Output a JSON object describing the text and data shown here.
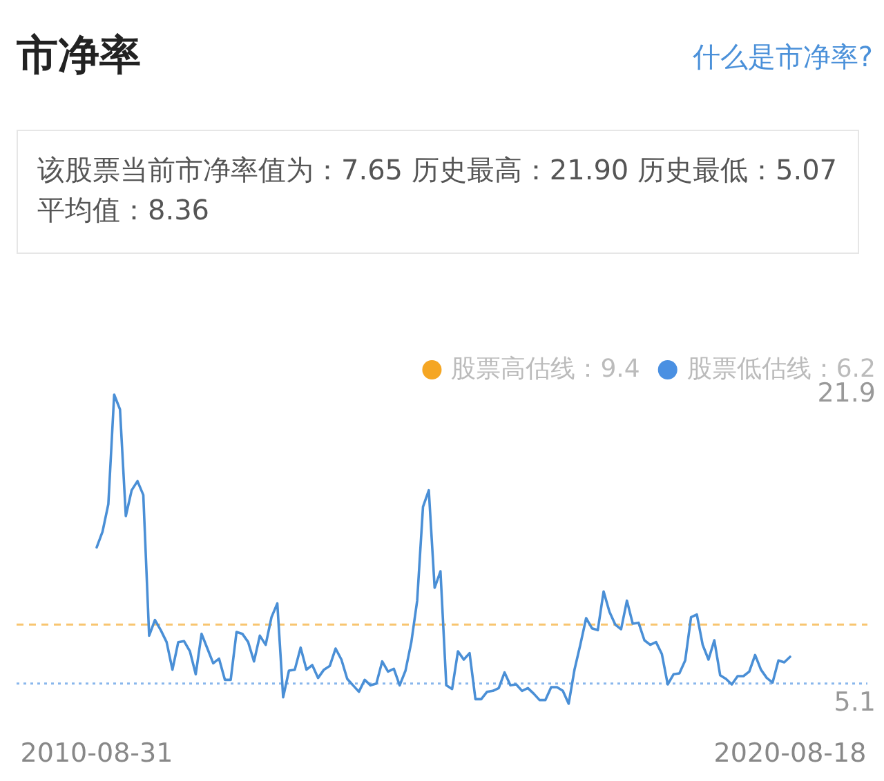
{
  "chart_data": {
    "type": "line",
    "title": "市净率",
    "subtitle": "该股票当前市净率值为：7.65 历史最高：21.90 历史最低：5.07 平均值：8.36",
    "annotations": [
      "什么是市净率?"
    ],
    "categories": [
      "2010-08-31",
      null,
      null,
      null,
      null,
      null,
      null,
      null,
      null,
      null,
      null,
      null,
      null,
      null,
      null,
      null,
      null,
      null,
      null,
      null,
      null,
      null,
      null,
      null,
      null,
      null,
      null,
      null,
      null,
      null,
      null,
      null,
      null,
      null,
      null,
      null,
      null,
      null,
      null,
      null,
      null,
      null,
      null,
      null,
      null,
      null,
      null,
      null,
      null,
      null,
      null,
      null,
      null,
      null,
      null,
      null,
      null,
      null,
      null,
      null,
      null,
      null,
      null,
      null,
      null,
      null,
      null,
      null,
      null,
      null,
      null,
      null,
      null,
      null,
      null,
      null,
      null,
      null,
      null,
      null,
      null,
      null,
      null,
      null,
      null,
      null,
      null,
      null,
      null,
      null,
      null,
      null,
      null,
      null,
      null,
      null,
      null,
      null,
      null,
      null,
      null,
      null,
      null,
      null,
      null,
      null,
      null,
      null,
      null,
      null,
      null,
      null,
      null,
      null,
      null,
      null,
      null,
      null,
      null,
      "2020-08-18"
    ],
    "series": [
      {
        "color": "#4a8fd6",
        "values": [
          13.6,
          14.45,
          15.95,
          21.9,
          21.1,
          15.3,
          16.7,
          17.2,
          16.45,
          8.8,
          9.65,
          9.1,
          8.45,
          6.95,
          8.45,
          8.5,
          7.95,
          6.7,
          8.9,
          8.1,
          7.3,
          7.55,
          6.4,
          6.4,
          9.0,
          8.9,
          8.45,
          7.4,
          8.8,
          8.3,
          9.8,
          10.55,
          5.45,
          6.9,
          6.95,
          8.15,
          6.95,
          7.2,
          6.5,
          6.95,
          7.15,
          8.1,
          7.5,
          6.45,
          6.1,
          5.75,
          6.4,
          6.1,
          6.2,
          7.4,
          6.85,
          7.0,
          6.1,
          6.9,
          8.45,
          10.7,
          15.8,
          16.7,
          11.4,
          12.3,
          6.1,
          5.9,
          7.95,
          7.5,
          7.85,
          5.35,
          5.35,
          5.75,
          5.8,
          5.95,
          6.8,
          6.1,
          6.15,
          5.8,
          5.95,
          5.65,
          5.3,
          5.3,
          6.0,
          6.0,
          5.8,
          5.1,
          6.95,
          8.3,
          9.75,
          9.2,
          9.1,
          11.2,
          10.1,
          9.4,
          9.15,
          10.7,
          9.45,
          9.5,
          8.55,
          8.3,
          8.45,
          7.8,
          6.15,
          6.7,
          6.75,
          7.45,
          9.8,
          9.95,
          8.3,
          7.5,
          8.55,
          6.65,
          6.45,
          6.15,
          6.6,
          6.6,
          6.85,
          7.75,
          6.95,
          6.5,
          6.25,
          7.45,
          7.35,
          7.65
        ]
      }
    ],
    "ylim": [
      5.1,
      21.9
    ],
    "yticks": [
      21.9,
      5.1
    ],
    "ref_lines": [
      {
        "axis": "y",
        "value": 9.4,
        "label": "股票高估线：9.4",
        "color": "#f5a623",
        "line_style": "dashed"
      },
      {
        "axis": "y",
        "value": 6.2,
        "label": "股票低估线：6.2",
        "color": "#4a90e2",
        "line_style": "dotted"
      }
    ],
    "legend": "top right",
    "grid": false
  }
}
